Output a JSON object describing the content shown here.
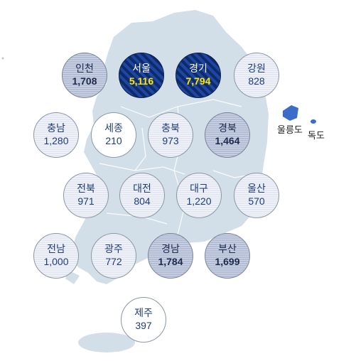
{
  "colors": {
    "land": "#d3dfe8",
    "level1": "#ffffff",
    "level2": "#e4e8f3",
    "level3": "#b4bdd6",
    "level4": "#173a86",
    "island": "#3b6cc9",
    "highlight_value": "#ffe600"
  },
  "islands": {
    "ulleungdo": "울릉도",
    "dokdo": "독도"
  },
  "regions": [
    {
      "key": "incheon",
      "name": "인천",
      "value": "1,708",
      "level": 3
    },
    {
      "key": "seoul",
      "name": "서울",
      "value": "5,116",
      "level": 4
    },
    {
      "key": "gyeonggi",
      "name": "경기",
      "value": "7,794",
      "level": 4
    },
    {
      "key": "gangwon",
      "name": "강원",
      "value": "828",
      "level": 2
    },
    {
      "key": "chungnam",
      "name": "충남",
      "value": "1,280",
      "level": 2
    },
    {
      "key": "sejong",
      "name": "세종",
      "value": "210",
      "level": 1
    },
    {
      "key": "chungbuk",
      "name": "충북",
      "value": "973",
      "level": 2
    },
    {
      "key": "gyeongbuk",
      "name": "경북",
      "value": "1,464",
      "level": 3
    },
    {
      "key": "jeonbuk",
      "name": "전북",
      "value": "971",
      "level": 2
    },
    {
      "key": "daejeon",
      "name": "대전",
      "value": "804",
      "level": 2
    },
    {
      "key": "daegu",
      "name": "대구",
      "value": "1,220",
      "level": 2
    },
    {
      "key": "ulsan",
      "name": "울산",
      "value": "570",
      "level": 2
    },
    {
      "key": "jeonnam",
      "name": "전남",
      "value": "1,000",
      "level": 2
    },
    {
      "key": "gwangju",
      "name": "광주",
      "value": "772",
      "level": 2
    },
    {
      "key": "gyeongnam",
      "name": "경남",
      "value": "1,784",
      "level": 3
    },
    {
      "key": "busan",
      "name": "부산",
      "value": "1,699",
      "level": 3
    },
    {
      "key": "jeju",
      "name": "제주",
      "value": "397",
      "level": 1
    }
  ]
}
